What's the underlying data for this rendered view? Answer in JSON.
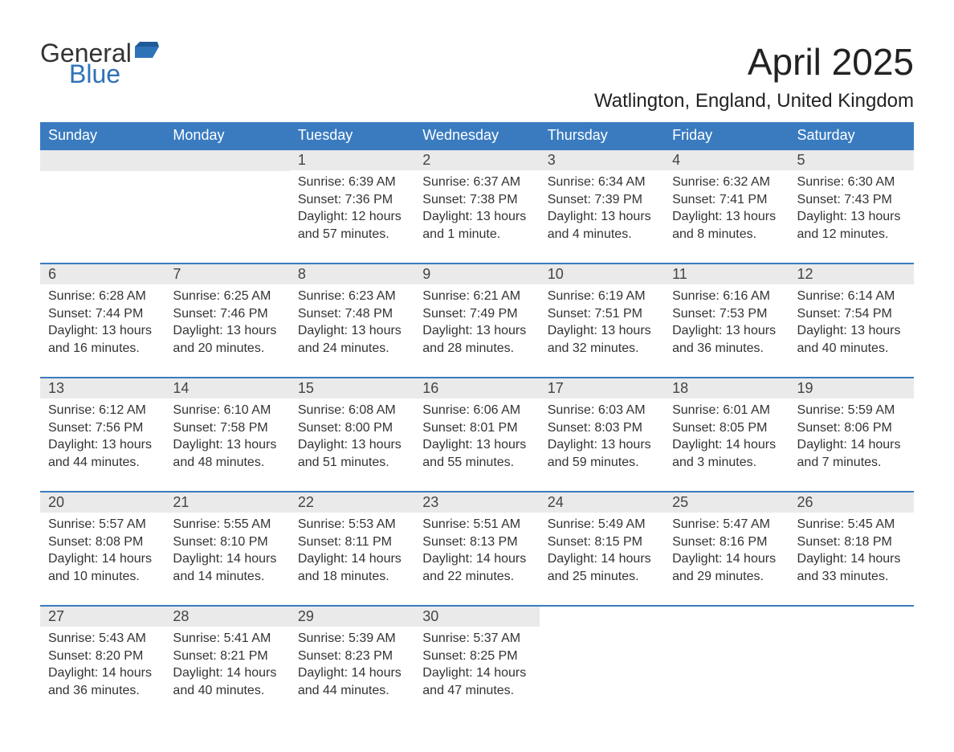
{
  "logo": {
    "text1": "General",
    "text2": "Blue",
    "accent_color": "#2e72b8"
  },
  "title": "April 2025",
  "location": "Watlington, England, United Kingdom",
  "colors": {
    "header_bg": "#3a7bc0",
    "header_text": "#ffffff",
    "daynum_bg": "#eaeaea",
    "row_divider": "#3a7bc0",
    "text": "#333333",
    "background": "#ffffff"
  },
  "typography": {
    "title_fontsize": 46,
    "location_fontsize": 24,
    "header_fontsize": 18,
    "daynum_fontsize": 18,
    "body_fontsize": 16
  },
  "layout": {
    "columns": 7,
    "rows": 5,
    "first_weekday": "Sunday"
  },
  "day_headers": [
    "Sunday",
    "Monday",
    "Tuesday",
    "Wednesday",
    "Thursday",
    "Friday",
    "Saturday"
  ],
  "weeks": [
    [
      null,
      null,
      {
        "n": "1",
        "sunrise": "Sunrise: 6:39 AM",
        "sunset": "Sunset: 7:36 PM",
        "dl1": "Daylight: 12 hours",
        "dl2": "and 57 minutes."
      },
      {
        "n": "2",
        "sunrise": "Sunrise: 6:37 AM",
        "sunset": "Sunset: 7:38 PM",
        "dl1": "Daylight: 13 hours",
        "dl2": "and 1 minute."
      },
      {
        "n": "3",
        "sunrise": "Sunrise: 6:34 AM",
        "sunset": "Sunset: 7:39 PM",
        "dl1": "Daylight: 13 hours",
        "dl2": "and 4 minutes."
      },
      {
        "n": "4",
        "sunrise": "Sunrise: 6:32 AM",
        "sunset": "Sunset: 7:41 PM",
        "dl1": "Daylight: 13 hours",
        "dl2": "and 8 minutes."
      },
      {
        "n": "5",
        "sunrise": "Sunrise: 6:30 AM",
        "sunset": "Sunset: 7:43 PM",
        "dl1": "Daylight: 13 hours",
        "dl2": "and 12 minutes."
      }
    ],
    [
      {
        "n": "6",
        "sunrise": "Sunrise: 6:28 AM",
        "sunset": "Sunset: 7:44 PM",
        "dl1": "Daylight: 13 hours",
        "dl2": "and 16 minutes."
      },
      {
        "n": "7",
        "sunrise": "Sunrise: 6:25 AM",
        "sunset": "Sunset: 7:46 PM",
        "dl1": "Daylight: 13 hours",
        "dl2": "and 20 minutes."
      },
      {
        "n": "8",
        "sunrise": "Sunrise: 6:23 AM",
        "sunset": "Sunset: 7:48 PM",
        "dl1": "Daylight: 13 hours",
        "dl2": "and 24 minutes."
      },
      {
        "n": "9",
        "sunrise": "Sunrise: 6:21 AM",
        "sunset": "Sunset: 7:49 PM",
        "dl1": "Daylight: 13 hours",
        "dl2": "and 28 minutes."
      },
      {
        "n": "10",
        "sunrise": "Sunrise: 6:19 AM",
        "sunset": "Sunset: 7:51 PM",
        "dl1": "Daylight: 13 hours",
        "dl2": "and 32 minutes."
      },
      {
        "n": "11",
        "sunrise": "Sunrise: 6:16 AM",
        "sunset": "Sunset: 7:53 PM",
        "dl1": "Daylight: 13 hours",
        "dl2": "and 36 minutes."
      },
      {
        "n": "12",
        "sunrise": "Sunrise: 6:14 AM",
        "sunset": "Sunset: 7:54 PM",
        "dl1": "Daylight: 13 hours",
        "dl2": "and 40 minutes."
      }
    ],
    [
      {
        "n": "13",
        "sunrise": "Sunrise: 6:12 AM",
        "sunset": "Sunset: 7:56 PM",
        "dl1": "Daylight: 13 hours",
        "dl2": "and 44 minutes."
      },
      {
        "n": "14",
        "sunrise": "Sunrise: 6:10 AM",
        "sunset": "Sunset: 7:58 PM",
        "dl1": "Daylight: 13 hours",
        "dl2": "and 48 minutes."
      },
      {
        "n": "15",
        "sunrise": "Sunrise: 6:08 AM",
        "sunset": "Sunset: 8:00 PM",
        "dl1": "Daylight: 13 hours",
        "dl2": "and 51 minutes."
      },
      {
        "n": "16",
        "sunrise": "Sunrise: 6:06 AM",
        "sunset": "Sunset: 8:01 PM",
        "dl1": "Daylight: 13 hours",
        "dl2": "and 55 minutes."
      },
      {
        "n": "17",
        "sunrise": "Sunrise: 6:03 AM",
        "sunset": "Sunset: 8:03 PM",
        "dl1": "Daylight: 13 hours",
        "dl2": "and 59 minutes."
      },
      {
        "n": "18",
        "sunrise": "Sunrise: 6:01 AM",
        "sunset": "Sunset: 8:05 PM",
        "dl1": "Daylight: 14 hours",
        "dl2": "and 3 minutes."
      },
      {
        "n": "19",
        "sunrise": "Sunrise: 5:59 AM",
        "sunset": "Sunset: 8:06 PM",
        "dl1": "Daylight: 14 hours",
        "dl2": "and 7 minutes."
      }
    ],
    [
      {
        "n": "20",
        "sunrise": "Sunrise: 5:57 AM",
        "sunset": "Sunset: 8:08 PM",
        "dl1": "Daylight: 14 hours",
        "dl2": "and 10 minutes."
      },
      {
        "n": "21",
        "sunrise": "Sunrise: 5:55 AM",
        "sunset": "Sunset: 8:10 PM",
        "dl1": "Daylight: 14 hours",
        "dl2": "and 14 minutes."
      },
      {
        "n": "22",
        "sunrise": "Sunrise: 5:53 AM",
        "sunset": "Sunset: 8:11 PM",
        "dl1": "Daylight: 14 hours",
        "dl2": "and 18 minutes."
      },
      {
        "n": "23",
        "sunrise": "Sunrise: 5:51 AM",
        "sunset": "Sunset: 8:13 PM",
        "dl1": "Daylight: 14 hours",
        "dl2": "and 22 minutes."
      },
      {
        "n": "24",
        "sunrise": "Sunrise: 5:49 AM",
        "sunset": "Sunset: 8:15 PM",
        "dl1": "Daylight: 14 hours",
        "dl2": "and 25 minutes."
      },
      {
        "n": "25",
        "sunrise": "Sunrise: 5:47 AM",
        "sunset": "Sunset: 8:16 PM",
        "dl1": "Daylight: 14 hours",
        "dl2": "and 29 minutes."
      },
      {
        "n": "26",
        "sunrise": "Sunrise: 5:45 AM",
        "sunset": "Sunset: 8:18 PM",
        "dl1": "Daylight: 14 hours",
        "dl2": "and 33 minutes."
      }
    ],
    [
      {
        "n": "27",
        "sunrise": "Sunrise: 5:43 AM",
        "sunset": "Sunset: 8:20 PM",
        "dl1": "Daylight: 14 hours",
        "dl2": "and 36 minutes."
      },
      {
        "n": "28",
        "sunrise": "Sunrise: 5:41 AM",
        "sunset": "Sunset: 8:21 PM",
        "dl1": "Daylight: 14 hours",
        "dl2": "and 40 minutes."
      },
      {
        "n": "29",
        "sunrise": "Sunrise: 5:39 AM",
        "sunset": "Sunset: 8:23 PM",
        "dl1": "Daylight: 14 hours",
        "dl2": "and 44 minutes."
      },
      {
        "n": "30",
        "sunrise": "Sunrise: 5:37 AM",
        "sunset": "Sunset: 8:25 PM",
        "dl1": "Daylight: 14 hours",
        "dl2": "and 47 minutes."
      },
      null,
      null,
      null
    ]
  ]
}
